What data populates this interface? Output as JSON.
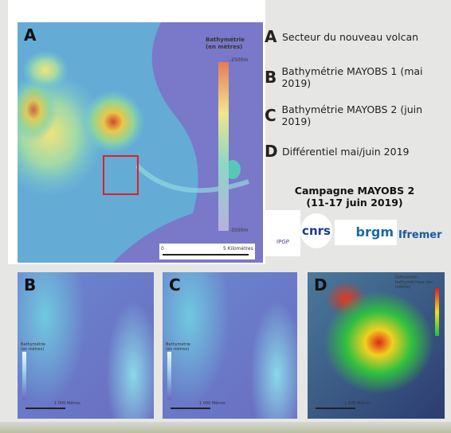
{
  "map_a": {
    "label": "A",
    "legend_title_1": "Bathymétrie",
    "legend_title_2": "(en mètres)",
    "legend_top": "-2500m",
    "legend_bottom": "-3500m",
    "scale_start": "0",
    "scale_end": "5 Kilomètres"
  },
  "legend": [
    {
      "letter": "A",
      "text": "Secteur du nouveau volcan"
    },
    {
      "letter": "B",
      "text": "Bathymétrie MAYOBS 1 (mai 2019)"
    },
    {
      "letter": "C",
      "text": "Bathymétrie MAYOBS 2 (juin 2019)"
    },
    {
      "letter": "D",
      "text": "Différentiel mai/juin 2019"
    }
  ],
  "campaign": {
    "title": "Campagne MAYOBS 2",
    "dates": "(11-17 juin 2019)"
  },
  "logos": [
    "IPGP",
    "cnrs",
    "brgm",
    "Ifremer"
  ],
  "maps": [
    {
      "label": "B",
      "legend_title": "Bathymétrie (en mètres)",
      "scale_end": "1 000 Mètres"
    },
    {
      "label": "C",
      "legend_title": "Bathymétrie (en mètres)",
      "scale_end": "1 000 Mètres"
    },
    {
      "label": "D",
      "legend_title": "Différentiel bathymétrique (en mètres)",
      "scale_end": "1 000 Mètres"
    }
  ]
}
